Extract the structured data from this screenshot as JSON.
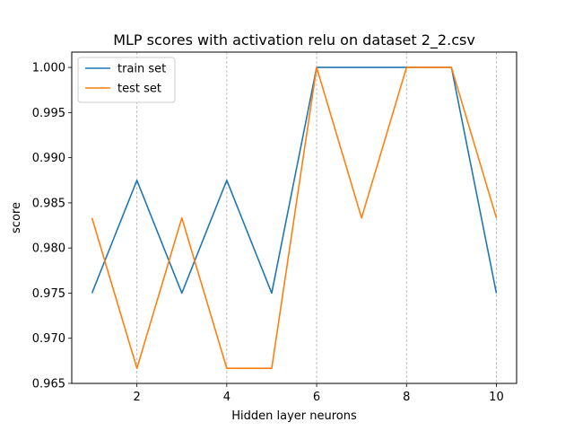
{
  "chart_data": {
    "type": "line",
    "title": "MLP scores with activation relu on dataset 2_2.csv",
    "xlabel": "Hidden layer neurons",
    "ylabel": "score",
    "x": [
      1,
      2,
      3,
      4,
      5,
      6,
      7,
      8,
      9,
      10
    ],
    "series": [
      {
        "name": "train set",
        "color": "#1f77b4",
        "values": [
          0.975,
          0.9875,
          0.975,
          0.9875,
          0.975,
          1.0,
          1.0,
          1.0,
          1.0,
          0.975
        ]
      },
      {
        "name": "test set",
        "color": "#ff7f0e",
        "values": [
          0.98333,
          0.96667,
          0.98333,
          0.96667,
          0.96667,
          1.0,
          0.98333,
          1.0,
          1.0,
          0.98333
        ]
      }
    ],
    "xlim": [
      0.55,
      10.45
    ],
    "ylim": [
      0.965,
      1.0017
    ],
    "xticks": [
      2,
      4,
      6,
      8,
      10
    ],
    "yticks": [
      0.965,
      0.97,
      0.975,
      0.98,
      0.985,
      0.99,
      0.995,
      1.0
    ],
    "ytick_labels": [
      "0.965",
      "0.970",
      "0.975",
      "0.980",
      "0.985",
      "0.990",
      "0.995",
      "1.000"
    ],
    "x_grid": true,
    "y_grid": false,
    "legend_position": "top-left"
  }
}
